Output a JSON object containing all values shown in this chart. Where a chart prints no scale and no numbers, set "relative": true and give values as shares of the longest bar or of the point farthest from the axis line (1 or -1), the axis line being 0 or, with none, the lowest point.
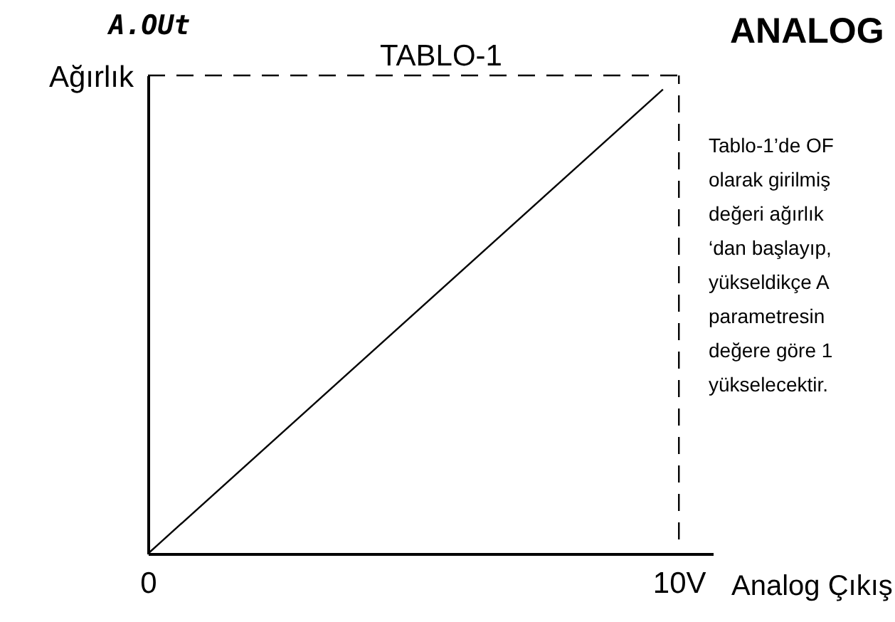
{
  "chart_data": {
    "type": "line",
    "title": "TABLO-1",
    "xlabel": "Analog Çıkış",
    "ylabel": "Ağırlık",
    "relative": true,
    "x": [
      0,
      9.7
    ],
    "series": [
      {
        "color": "#000000",
        "values": [
          0,
          1
        ]
      }
    ],
    "xlim": [
      0,
      10.64
    ],
    "xticks": [
      0,
      {
        "value": 10,
        "label": "10V"
      }
    ],
    "tick_labels": "x",
    "grid": false,
    "marker": "none",
    "line_style": "solid",
    "ref_lines": [
      {
        "axis": "x",
        "value": 10,
        "color": "#000000",
        "line_style": "dashed"
      },
      {
        "axis": "y",
        "value": 1.03,
        "color": "#000000",
        "line_style": "dashed"
      }
    ],
    "annotations": [
      "A.OUt",
      "ANALOG",
      "Tablo-1’de OF\nolarak girilmiş\ndeğeri ağırlık\n‘dan başlayıp,\nyükseldikçe A\nparametresin\ndeğere göre 1\nyükselecektir."
    ]
  }
}
